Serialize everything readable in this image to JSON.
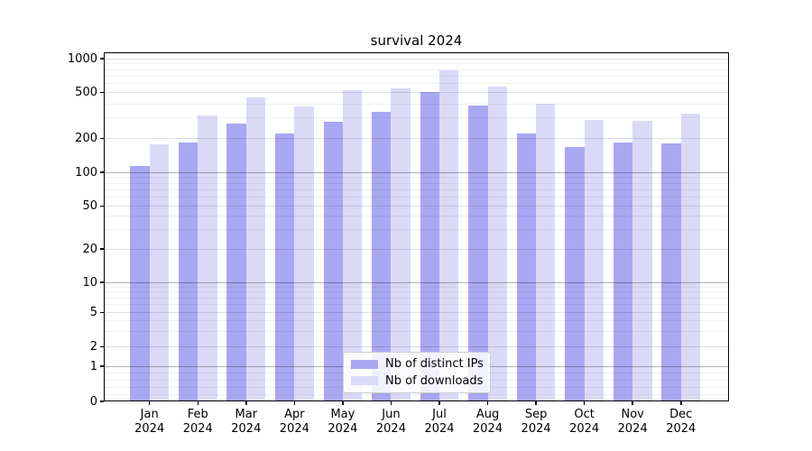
{
  "title": "survival 2024",
  "legend": {
    "items": [
      {
        "label": "Nb of distinct IPs",
        "color": "#a8a8f2"
      },
      {
        "label": "Nb of downloads",
        "color": "#dadaf8"
      }
    ]
  },
  "chart_data": {
    "type": "bar",
    "title": "survival 2024",
    "categories": [
      "Jan 2024",
      "Feb 2024",
      "Mar 2024",
      "Apr 2024",
      "May 2024",
      "Jun 2024",
      "Jul 2024",
      "Aug 2024",
      "Sep 2024",
      "Oct 2024",
      "Nov 2024",
      "Dec 2024"
    ],
    "x_tick_line1": [
      "Jan",
      "Feb",
      "Mar",
      "Apr",
      "May",
      "Jun",
      "Jul",
      "Aug",
      "Sep",
      "Oct",
      "Nov",
      "Dec"
    ],
    "x_tick_line2": "2024",
    "series": [
      {
        "name": "Nb of distinct IPs",
        "color": "#a8a8f2",
        "values": [
          113,
          183,
          267,
          219,
          279,
          340,
          507,
          388,
          221,
          168,
          183,
          179
        ]
      },
      {
        "name": "Nb of downloads",
        "color": "#dadaf8",
        "values": [
          178,
          314,
          452,
          377,
          528,
          545,
          792,
          565,
          398,
          289,
          284,
          326
        ]
      }
    ],
    "y_axis": {
      "scale": "symlog",
      "tick_values": [
        1000,
        500,
        200,
        100,
        50,
        20,
        10,
        5,
        2,
        1,
        0
      ],
      "tick_labels": [
        "1000",
        "500",
        "200",
        "100",
        "50",
        "20",
        "10",
        "5",
        "2",
        "1",
        "0"
      ],
      "ylim": [
        0,
        1100
      ]
    },
    "grid": true,
    "legend_position": "lower center"
  }
}
